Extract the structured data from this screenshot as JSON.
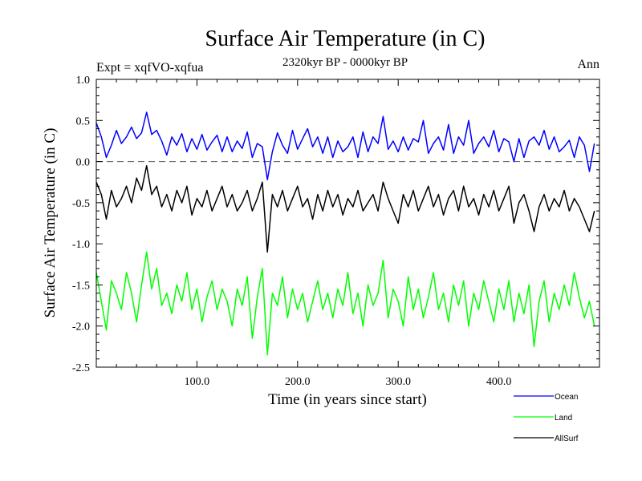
{
  "chart_data": {
    "type": "line",
    "title": "Surface Air Temperature (in C)",
    "subtitle": "2320kyr BP - 0000kyr BP",
    "left_note": "Expt = xqfVO-xqfua",
    "right_note": "Ann",
    "xlabel": "Time (in years since start)",
    "ylabel": "Surface Air Temperature (in C)",
    "xlim": [
      0,
      500
    ],
    "ylim": [
      -2.5,
      1.0
    ],
    "xticks": [
      100,
      200,
      300,
      400
    ],
    "xtick_labels": [
      "100.0",
      "200.0",
      "300.0",
      "400.0"
    ],
    "yticks": [
      -2.5,
      -2.0,
      -1.5,
      -1.0,
      -0.5,
      0.0,
      0.5,
      1.0
    ],
    "ytick_labels": [
      "-2.5",
      "-2.0",
      "-1.5",
      "-1.0",
      "-0.5",
      "0.0",
      "0.5",
      "1.0"
    ],
    "zero_line": {
      "value": 0.0,
      "style": "dashed"
    },
    "legend_position": "bottom-right",
    "series": [
      {
        "name": "Ocean",
        "color": "#0000ff",
        "x_start": 0,
        "x_step": 5,
        "values": [
          0.47,
          0.3,
          0.05,
          0.2,
          0.38,
          0.22,
          0.3,
          0.42,
          0.28,
          0.35,
          0.6,
          0.33,
          0.38,
          0.25,
          0.08,
          0.3,
          0.2,
          0.34,
          0.12,
          0.28,
          0.15,
          0.33,
          0.14,
          0.24,
          0.32,
          0.12,
          0.3,
          0.12,
          0.25,
          0.16,
          0.36,
          0.05,
          0.22,
          0.18,
          -0.22,
          0.12,
          0.35,
          0.2,
          0.1,
          0.38,
          0.15,
          0.28,
          0.4,
          0.18,
          0.3,
          0.1,
          0.3,
          0.05,
          0.25,
          0.12,
          0.18,
          0.3,
          0.05,
          0.36,
          0.12,
          0.3,
          0.22,
          0.55,
          0.15,
          0.25,
          0.12,
          0.3,
          0.14,
          0.28,
          0.24,
          0.5,
          0.1,
          0.22,
          0.3,
          0.14,
          0.45,
          0.1,
          0.3,
          0.2,
          0.5,
          0.1,
          0.22,
          0.3,
          0.18,
          0.38,
          0.12,
          0.28,
          0.24,
          0.0,
          0.28,
          0.05,
          0.25,
          0.3,
          0.2,
          0.38,
          0.15,
          0.3,
          0.12,
          0.18,
          0.26,
          0.05,
          0.3,
          0.2,
          -0.12,
          0.22
        ]
      },
      {
        "name": "Land",
        "color": "#00ff00",
        "x_start": 0,
        "x_step": 5,
        "values": [
          -1.35,
          -1.7,
          -2.05,
          -1.45,
          -1.6,
          -1.8,
          -1.35,
          -1.6,
          -1.95,
          -1.5,
          -1.1,
          -1.55,
          -1.3,
          -1.75,
          -1.6,
          -1.85,
          -1.5,
          -1.7,
          -1.35,
          -1.8,
          -1.55,
          -1.95,
          -1.65,
          -1.45,
          -1.8,
          -1.55,
          -1.7,
          -2.0,
          -1.55,
          -1.75,
          -1.4,
          -2.15,
          -1.65,
          -1.3,
          -2.35,
          -1.6,
          -1.75,
          -1.4,
          -1.9,
          -1.55,
          -1.8,
          -1.6,
          -1.95,
          -1.7,
          -1.45,
          -1.8,
          -1.6,
          -1.9,
          -1.55,
          -1.75,
          -1.35,
          -1.85,
          -1.6,
          -2.0,
          -1.5,
          -1.75,
          -1.6,
          -1.2,
          -1.9,
          -1.55,
          -1.7,
          -2.0,
          -1.4,
          -1.8,
          -1.55,
          -1.9,
          -1.65,
          -1.35,
          -1.8,
          -1.6,
          -1.95,
          -1.5,
          -1.75,
          -1.45,
          -2.0,
          -1.6,
          -1.8,
          -1.45,
          -1.7,
          -1.95,
          -1.55,
          -1.8,
          -1.45,
          -1.95,
          -1.6,
          -1.85,
          -1.5,
          -2.25,
          -1.7,
          -1.45,
          -1.95,
          -1.6,
          -1.8,
          -1.5,
          -1.75,
          -1.35,
          -1.65,
          -1.9,
          -1.7,
          -2.0
        ]
      },
      {
        "name": "AllSurf",
        "color": "#000000",
        "x_start": 0,
        "x_step": 5,
        "values": [
          -0.25,
          -0.4,
          -0.7,
          -0.35,
          -0.55,
          -0.45,
          -0.3,
          -0.5,
          -0.2,
          -0.35,
          -0.05,
          -0.4,
          -0.3,
          -0.55,
          -0.4,
          -0.6,
          -0.35,
          -0.5,
          -0.3,
          -0.65,
          -0.45,
          -0.55,
          -0.35,
          -0.6,
          -0.45,
          -0.3,
          -0.55,
          -0.4,
          -0.6,
          -0.5,
          -0.35,
          -0.6,
          -0.45,
          -0.25,
          -1.1,
          -0.4,
          -0.55,
          -0.35,
          -0.6,
          -0.45,
          -0.3,
          -0.55,
          -0.45,
          -0.7,
          -0.4,
          -0.6,
          -0.35,
          -0.55,
          -0.4,
          -0.65,
          -0.45,
          -0.55,
          -0.35,
          -0.6,
          -0.5,
          -0.4,
          -0.6,
          -0.25,
          -0.45,
          -0.6,
          -0.75,
          -0.4,
          -0.55,
          -0.35,
          -0.6,
          -0.45,
          -0.3,
          -0.55,
          -0.4,
          -0.65,
          -0.45,
          -0.35,
          -0.6,
          -0.3,
          -0.55,
          -0.45,
          -0.65,
          -0.4,
          -0.55,
          -0.35,
          -0.6,
          -0.45,
          -0.3,
          -0.75,
          -0.5,
          -0.4,
          -0.6,
          -0.85,
          -0.55,
          -0.4,
          -0.6,
          -0.45,
          -0.55,
          -0.35,
          -0.6,
          -0.45,
          -0.55,
          -0.7,
          -0.85,
          -0.6
        ]
      }
    ]
  }
}
